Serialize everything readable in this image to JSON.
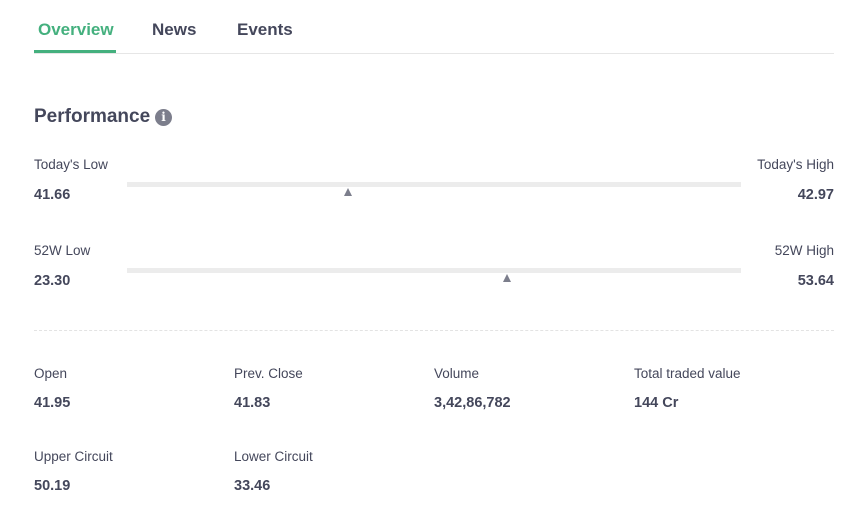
{
  "tabs": [
    {
      "label": "Overview",
      "active": true
    },
    {
      "label": "News"
    },
    {
      "label": "Events"
    }
  ],
  "performance": {
    "title": "Performance",
    "info_icon": "i",
    "ranges": [
      {
        "low_label": "Today's Low",
        "low": "41.66",
        "high_label": "Today's High",
        "high": "42.97",
        "marker_fraction": 0.36
      },
      {
        "low_label": "52W Low",
        "low": "23.30",
        "high_label": "52W High",
        "high": "53.64",
        "marker_fraction": 0.62
      }
    ],
    "stats": [
      {
        "label": "Open",
        "value": "41.95"
      },
      {
        "label": "Prev. Close",
        "value": "41.83"
      },
      {
        "label": "Volume",
        "value": "3,42,86,782"
      },
      {
        "label": "Total traded value",
        "value": "144 Cr"
      },
      {
        "label": "Upper Circuit",
        "value": "50.19"
      },
      {
        "label": "Lower Circuit",
        "value": "33.46"
      }
    ]
  },
  "colors": {
    "accent": "#44b07e",
    "text": "#44475b"
  }
}
